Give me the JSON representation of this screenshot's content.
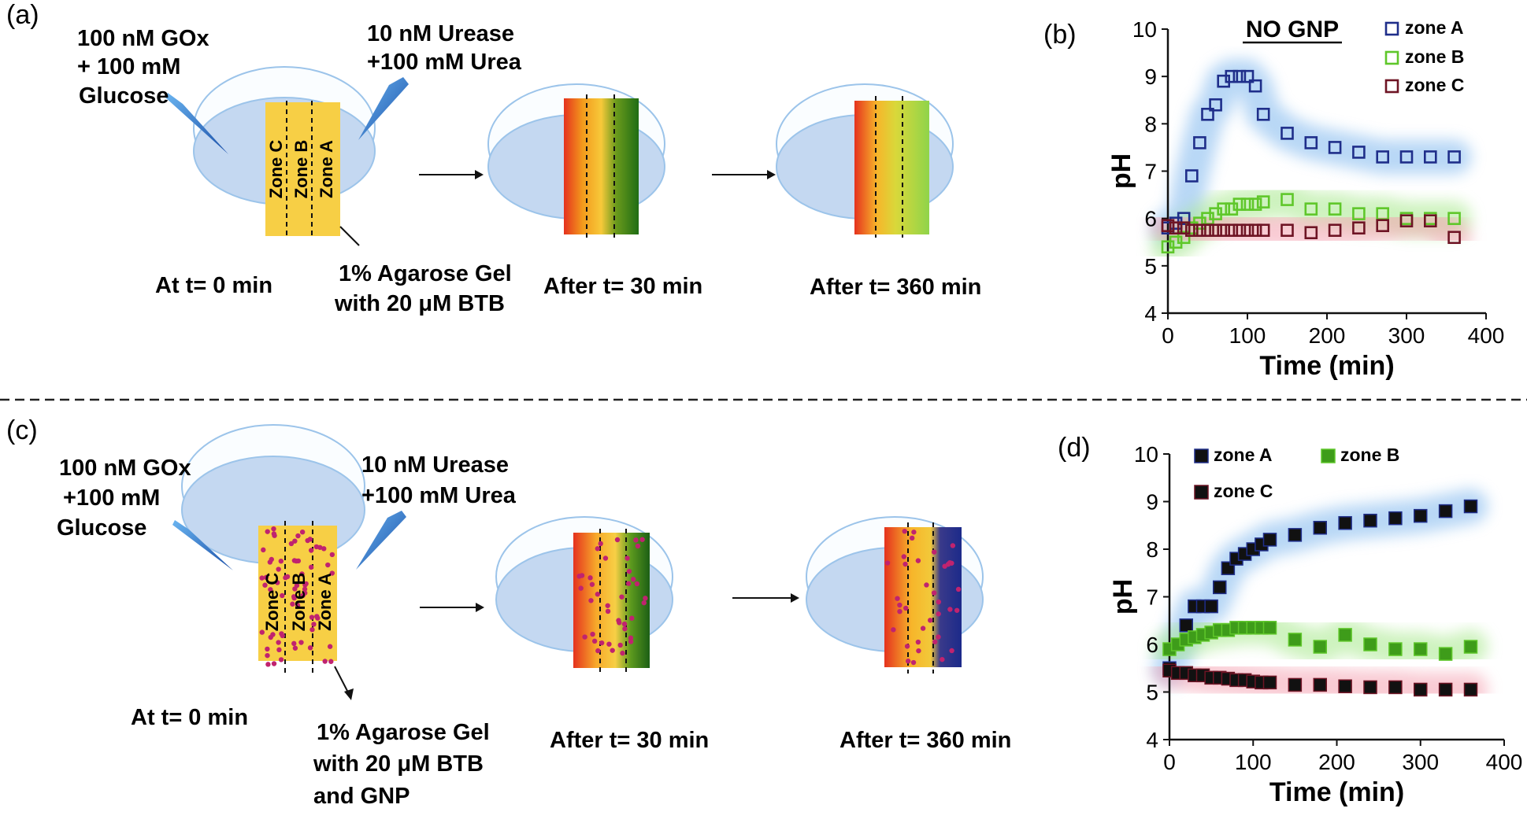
{
  "panels": {
    "a": "(a)",
    "b": "(b)",
    "c": "(c)",
    "d": "(d)"
  },
  "top_diagram": {
    "gox_line1": "100 nM GOx",
    "gox_line2": "+ 100 mM",
    "gox_line3": "Glucose",
    "urease_line1": "10 nM Urease",
    "urease_line2": "+100 mM Urea",
    "zone_c": "Zone C",
    "zone_b": "Zone B",
    "zone_a": "Zone A",
    "gel_line1": "1% Agarose Gel",
    "gel_line2": "with 20 μM BTB",
    "t0": "At t= 0 min",
    "t30": "After t= 30 min",
    "t360": "After t= 360 min"
  },
  "bottom_diagram": {
    "gox_line1": "100 nM GOx",
    "gox_line2": "+100 mM",
    "gox_line3": "Glucose",
    "urease_line1": "10 nM Urease",
    "urease_line2": "+100 mM Urea",
    "zone_c": "Zone C",
    "zone_b": "Zone B",
    "zone_a": "Zone A",
    "gel_line1": "1% Agarose Gel",
    "gel_line2": "with 20 μM BTB",
    "gel_line3": "and GNP",
    "t0": "At t= 0 min",
    "t30": "After t= 30 min",
    "t360": "After t= 360 min"
  },
  "colors": {
    "zoneA": "#1f2e8a",
    "zoneB": "#5fc72a",
    "zoneC": "#6e1424",
    "glowA": "#7fb7ee",
    "glowB": "#a6e88a",
    "glowC": "#f4a0b0",
    "gel_yellow": "#f7cf45",
    "dish": "#cfe0f4"
  },
  "chart_data": [
    {
      "type": "scatter",
      "title": "NO GNP",
      "xlabel": "Time (min)",
      "ylabel": "pH",
      "xlim": [
        0,
        400
      ],
      "ylim": [
        4,
        10
      ],
      "xticks": [
        "0",
        "100",
        "200",
        "300",
        "400"
      ],
      "yticks": [
        "4",
        "5",
        "6",
        "7",
        "8",
        "9",
        "10"
      ],
      "marker": "hollow-square",
      "legend_position": "top-right",
      "series": [
        {
          "name": "zone A",
          "x": [
            0,
            10,
            20,
            30,
            40,
            50,
            60,
            70,
            80,
            90,
            100,
            110,
            120,
            150,
            180,
            210,
            240,
            270,
            300,
            330,
            360
          ],
          "values": [
            5.8,
            5.9,
            6.0,
            6.9,
            7.6,
            8.2,
            8.4,
            8.9,
            9.0,
            9.0,
            9.0,
            8.8,
            8.2,
            7.8,
            7.6,
            7.5,
            7.4,
            7.3,
            7.3,
            7.3,
            7.3
          ]
        },
        {
          "name": "zone B",
          "x": [
            0,
            10,
            20,
            30,
            40,
            50,
            60,
            70,
            80,
            90,
            100,
            110,
            120,
            150,
            180,
            210,
            240,
            270,
            300,
            330,
            360
          ],
          "values": [
            5.4,
            5.5,
            5.6,
            5.8,
            5.9,
            6.0,
            6.1,
            6.2,
            6.2,
            6.3,
            6.3,
            6.3,
            6.35,
            6.4,
            6.2,
            6.2,
            6.1,
            6.1,
            6.0,
            6.0,
            6.0
          ]
        },
        {
          "name": "zone C",
          "x": [
            0,
            10,
            20,
            30,
            40,
            50,
            60,
            70,
            80,
            90,
            100,
            110,
            120,
            150,
            180,
            210,
            240,
            270,
            300,
            330,
            360
          ],
          "values": [
            5.85,
            5.8,
            5.8,
            5.75,
            5.75,
            5.75,
            5.75,
            5.75,
            5.75,
            5.75,
            5.75,
            5.75,
            5.75,
            5.75,
            5.7,
            5.75,
            5.8,
            5.85,
            5.95,
            5.95,
            5.6
          ]
        }
      ]
    },
    {
      "type": "scatter",
      "title": "",
      "xlabel": "Time (min)",
      "ylabel": "pH",
      "xlim": [
        0,
        400
      ],
      "ylim": [
        4,
        10
      ],
      "xticks": [
        "0",
        "100",
        "200",
        "300",
        "400"
      ],
      "yticks": [
        "4",
        "5",
        "6",
        "7",
        "8",
        "9",
        "10"
      ],
      "marker": "filled-square",
      "legend_position": "top-left",
      "series": [
        {
          "name": "zone A",
          "x": [
            0,
            20,
            30,
            40,
            50,
            60,
            70,
            80,
            90,
            100,
            110,
            120,
            150,
            180,
            210,
            240,
            270,
            300,
            330,
            360
          ],
          "values": [
            5.5,
            6.4,
            6.8,
            6.8,
            6.8,
            7.2,
            7.6,
            7.8,
            7.9,
            8.0,
            8.1,
            8.2,
            8.3,
            8.45,
            8.55,
            8.6,
            8.65,
            8.7,
            8.8,
            8.9
          ]
        },
        {
          "name": "zone B",
          "x": [
            0,
            10,
            20,
            30,
            40,
            50,
            60,
            70,
            80,
            90,
            100,
            110,
            120,
            150,
            180,
            210,
            240,
            270,
            300,
            330,
            360
          ],
          "values": [
            5.9,
            6.0,
            6.1,
            6.15,
            6.2,
            6.25,
            6.3,
            6.3,
            6.35,
            6.35,
            6.35,
            6.35,
            6.35,
            6.1,
            5.95,
            6.2,
            6.0,
            5.9,
            5.9,
            5.8,
            5.95
          ]
        },
        {
          "name": "zone C",
          "x": [
            0,
            10,
            20,
            30,
            40,
            50,
            60,
            70,
            80,
            90,
            100,
            110,
            120,
            150,
            180,
            210,
            240,
            270,
            300,
            330,
            360
          ],
          "values": [
            5.45,
            5.4,
            5.4,
            5.35,
            5.35,
            5.3,
            5.3,
            5.28,
            5.25,
            5.25,
            5.22,
            5.2,
            5.2,
            5.15,
            5.15,
            5.12,
            5.1,
            5.1,
            5.05,
            5.05,
            5.05
          ]
        }
      ]
    }
  ]
}
